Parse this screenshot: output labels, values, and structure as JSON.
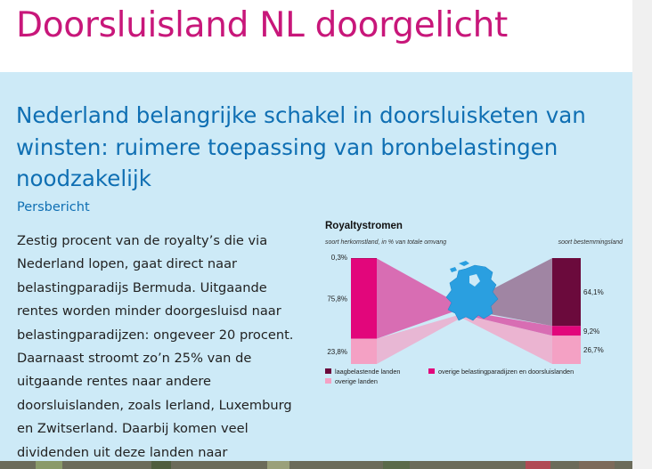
{
  "page": {
    "title": "Doorsluisland NL doorgelicht",
    "headline": "Nederland belangrijke schakel in doorsluisketen van winsten: ruimere toepassing van bronbelastingen noodzakelijk",
    "subtitle": "Persbericht",
    "body": "Zestig procent van de royalty’s die via Nederland lopen, gaat direct naar belastingparadijs Bermuda. Uitgaande rentes worden minder doorgesluisd naar belastingparadijzen: ongeveer 20 procent. Daarnaast stroomt zo’n 25% van de uitgaande rentes naar andere doorsluislanden, zoals Ierland, Luxemburg en Zwitserland. Daarbij komen veel dividenden uit deze landen naar"
  },
  "colors": {
    "title": "#c8177a",
    "headline": "#0f6fb3",
    "panel_bg": "#cdeaf7",
    "low_tax": "#6b0a3c",
    "conduit": "#e2067b",
    "other": "#f4a1c4",
    "map": "#2a9fe0"
  },
  "chart_data": {
    "type": "sankey",
    "title": "Royaltystromen",
    "left_label": "soort herkomstland, in % van totale omvang",
    "right_label": "soort bestemmingsland",
    "categories": [
      "laagbelastende landen",
      "overige belastingparadijzen en doorsluislanden",
      "overige landen"
    ],
    "left_values": [
      0.3,
      75.8,
      23.8
    ],
    "right_values": [
      64.1,
      9.2,
      26.7
    ],
    "left_value_labels": [
      "0,3%",
      "75,8%",
      "23,8%"
    ],
    "right_value_labels": [
      "64,1%",
      "9,2%",
      "26,7%"
    ],
    "legend": [
      "laagbelastende landen",
      "overige belastingparadijzen en doorsluislanden",
      "overige landen"
    ]
  },
  "icons": {
    "map": "netherlands-map-icon"
  }
}
